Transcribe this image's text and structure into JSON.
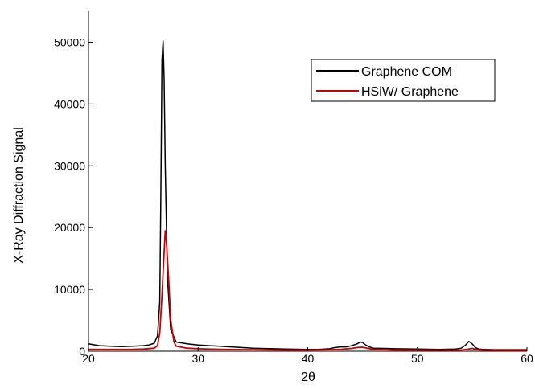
{
  "chart_data": {
    "type": "line",
    "xlabel": "2θ",
    "ylabel": "X-Ray Diffraction Signal",
    "xlim": [
      20,
      60
    ],
    "ylim": [
      0,
      55000
    ],
    "x_ticks": [
      "20",
      "30",
      "40",
      "50",
      "60"
    ],
    "y_ticks": [
      "0",
      "10000",
      "20000",
      "30000",
      "40000",
      "50000"
    ],
    "grid": false,
    "legend_position": "top-right",
    "series": [
      {
        "name": "Graphene COM",
        "color": "#000000",
        "x": [
          20,
          21,
          22,
          23,
          24,
          25,
          25.5,
          26,
          26.3,
          26.5,
          26.6,
          26.7,
          26.8,
          26.9,
          27.0,
          27.2,
          27.5,
          28,
          29,
          30,
          32,
          35,
          38,
          40,
          41,
          42,
          42.5,
          43,
          43.5,
          44,
          44.5,
          44.8,
          45,
          45.3,
          45.6,
          46,
          47,
          48,
          50,
          52,
          53.5,
          54,
          54.4,
          54.7,
          55,
          55.3,
          55.6,
          56,
          57,
          58,
          59,
          60
        ],
        "y": [
          1200,
          900,
          800,
          750,
          800,
          900,
          1000,
          1300,
          2500,
          8000,
          25000,
          47000,
          50200,
          44000,
          30000,
          12000,
          3500,
          1500,
          1200,
          1000,
          800,
          500,
          350,
          300,
          300,
          400,
          600,
          700,
          700,
          900,
          1200,
          1500,
          1400,
          1000,
          700,
          500,
          450,
          400,
          350,
          300,
          350,
          500,
          1000,
          1600,
          1200,
          600,
          350,
          300,
          250,
          250,
          250,
          250
        ]
      },
      {
        "name": "HSiW/ Graphene",
        "color": "#cc0000",
        "x": [
          20,
          22,
          24,
          25,
          26,
          26.3,
          26.5,
          26.7,
          26.9,
          27.0,
          27.1,
          27.3,
          27.5,
          27.8,
          28,
          29,
          30,
          32,
          35,
          38,
          40,
          42,
          43,
          44,
          44.5,
          45,
          45.5,
          46,
          48,
          50,
          52,
          54,
          54.5,
          55,
          55.5,
          56,
          58,
          60
        ],
        "y": [
          300,
          280,
          300,
          350,
          500,
          900,
          3000,
          9000,
          16000,
          19500,
          18000,
          12000,
          5000,
          1500,
          800,
          500,
          400,
          300,
          250,
          200,
          200,
          250,
          300,
          450,
          600,
          650,
          450,
          300,
          200,
          200,
          180,
          200,
          300,
          450,
          250,
          180,
          150,
          150
        ]
      }
    ]
  }
}
